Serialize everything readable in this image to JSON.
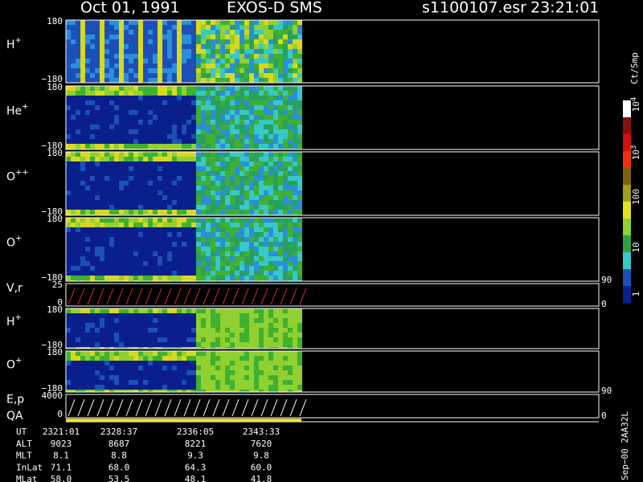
{
  "header": {
    "date": "Oct 01, 1991",
    "instrument": "EXOS-D SMS",
    "file": "s1100107.esr",
    "time": "23:21:01"
  },
  "panels": [
    {
      "label": "H",
      "sup": "+",
      "top": "180",
      "bottom": "−180"
    },
    {
      "label": "He",
      "sup": "+",
      "top": "180",
      "bottom": "−180"
    },
    {
      "label": "O",
      "sup": "++",
      "top": "180",
      "bottom": "−180"
    },
    {
      "label": "O",
      "sup": "+",
      "top": "180",
      "bottom": "−180"
    },
    {
      "label": "V,r",
      "top": "25",
      "bottom": "0",
      "right_top": "90",
      "right_bottom": "0"
    },
    {
      "label": "H",
      "sup": "+",
      "top": "180",
      "bottom": "−180"
    },
    {
      "label": "O",
      "sup": "+",
      "top": "180",
      "bottom": "−180"
    },
    {
      "label": "E,p",
      "top": "4000",
      "bottom": "0",
      "right_top": "90",
      "right_bottom": "0"
    }
  ],
  "qa_label": "QA",
  "colorbar": {
    "unit": "Ct/Smp",
    "labels": [
      {
        "base": "10",
        "sup": "4"
      },
      {
        "base": "10",
        "sup": "3"
      },
      {
        "base": "100"
      },
      {
        "base": "10"
      },
      {
        "base": "1"
      }
    ]
  },
  "ephemeris": {
    "rows": [
      {
        "label": "UT",
        "values": [
          "2321:01",
          "2328:37",
          "2336:05",
          "2343:33"
        ]
      },
      {
        "label": "ALT",
        "values": [
          "9023",
          "8687",
          "8221",
          "7620"
        ]
      },
      {
        "label": "MLT",
        "values": [
          "8.1",
          "8.8",
          "9.3",
          "9.8"
        ]
      },
      {
        "label": "InLat",
        "values": [
          "71.1",
          "68.0",
          "64.3",
          "60.0"
        ]
      },
      {
        "label": "MLat",
        "values": [
          "58.0",
          "53.5",
          "48.1",
          "41.8"
        ]
      }
    ]
  },
  "footer": "Sep−00 2AA32L"
}
